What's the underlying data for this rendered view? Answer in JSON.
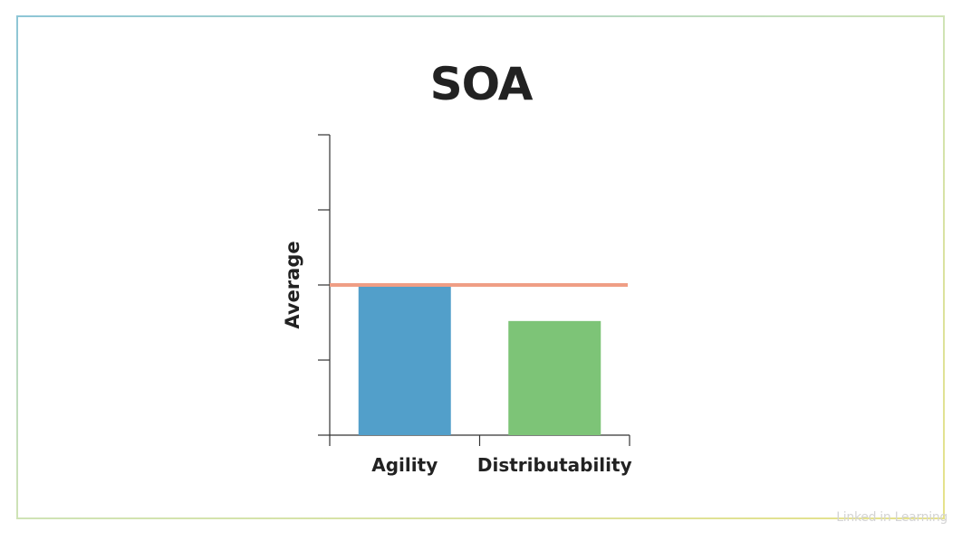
{
  "chart_data": {
    "type": "bar",
    "title": "SOA",
    "xlabel": "",
    "ylabel": "Average",
    "categories": [
      "Agility",
      "Distributability"
    ],
    "values": [
      2,
      1.52
    ],
    "ylim": [
      0,
      4
    ],
    "yticks": [
      0,
      1,
      2,
      3,
      4
    ],
    "show_tick_labels": false,
    "bar_colors": [
      "#529fca",
      "#7dc477"
    ],
    "reference_line": {
      "value": 2,
      "color": "#ef9e85"
    },
    "grid": false,
    "legend": "none"
  },
  "colors": {
    "frame_left": "#8ec6d6",
    "frame_right": "#e6e28a",
    "axis": "#333333",
    "title": "#222222"
  },
  "watermark": {
    "text": "Linked in Learning"
  }
}
